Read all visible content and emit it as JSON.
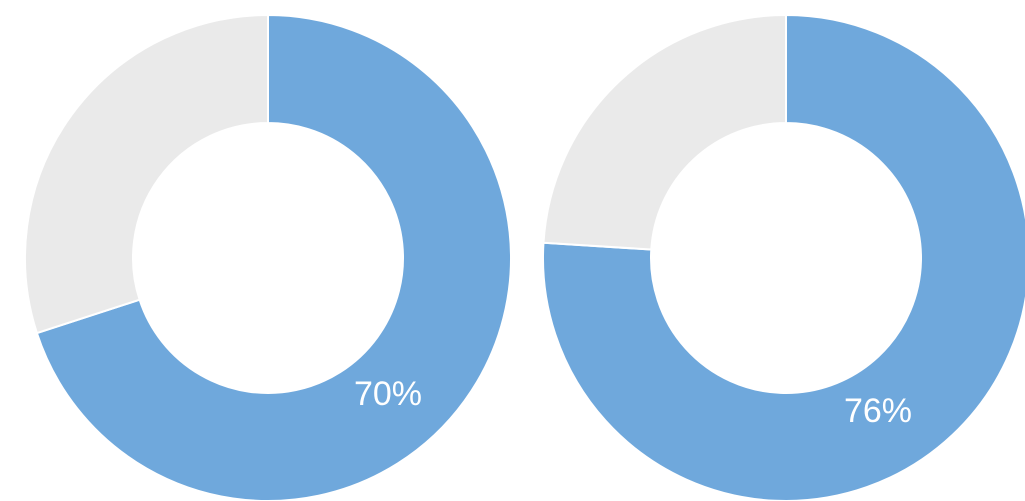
{
  "chart_data": [
    {
      "type": "pie",
      "categories": [
        "",
        ""
      ],
      "values": [
        70,
        30
      ],
      "data_labels": [
        "70%",
        ""
      ],
      "colors": [
        "#6fa8dc",
        "#eaeaea"
      ]
    },
    {
      "type": "pie",
      "categories": [
        "",
        ""
      ],
      "values": [
        76,
        24
      ],
      "data_labels": [
        "76%",
        ""
      ],
      "colors": [
        "#6fa8dc",
        "#eaeaea"
      ]
    }
  ]
}
